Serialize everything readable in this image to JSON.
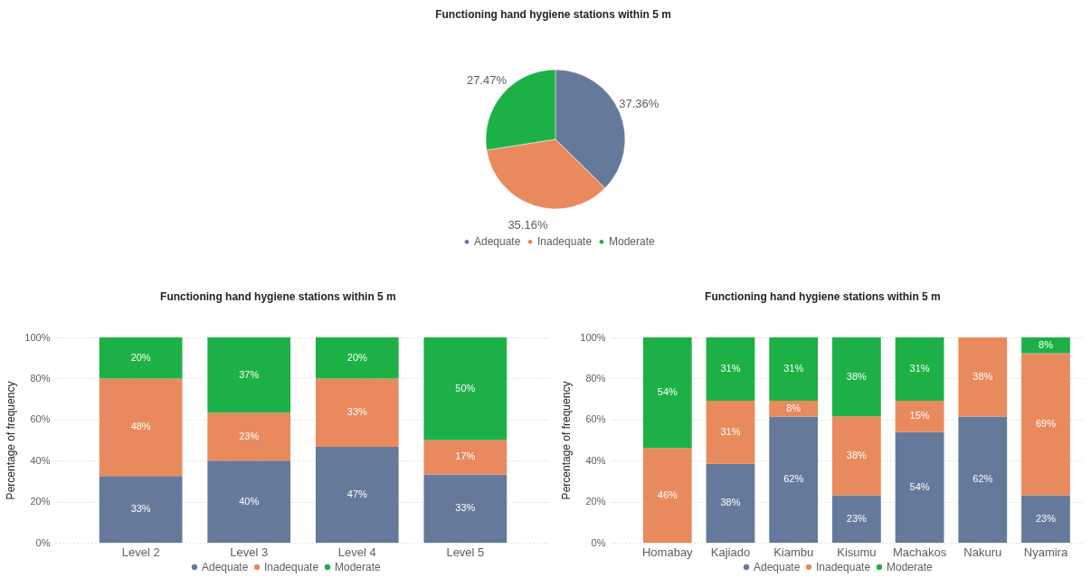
{
  "chart_data": [
    {
      "type": "pie",
      "title": "Functioning hand hygiene stations within 5 m",
      "categories": [
        "Adequate",
        "Inadequate",
        "Moderate"
      ],
      "values": [
        37.36,
        35.16,
        27.47
      ],
      "colors": [
        "#657a9b",
        "#e98a5e",
        "#1db046"
      ],
      "value_labels": [
        "37.36%",
        "35.16%",
        "27.47%"
      ],
      "legend": "bottom"
    },
    {
      "type": "bar",
      "stacked": true,
      "title": "Functioning hand hygiene stations within 5 m",
      "ylabel": "Percentage of frequency",
      "categories": [
        "Level 2",
        "Level 3",
        "Level 4",
        "Level 5"
      ],
      "series": [
        {
          "name": "Adequate",
          "color": "#657a9b",
          "values": [
            32.5,
            40,
            46.7,
            33.3
          ],
          "value_labels": [
            "33%",
            "40%",
            "47%",
            "33%"
          ]
        },
        {
          "name": "Inadequate",
          "color": "#e98a5e",
          "values": [
            47.5,
            23.3,
            33.3,
            16.7
          ],
          "value_labels": [
            "48%",
            "23%",
            "33%",
            "17%"
          ]
        },
        {
          "name": "Moderate",
          "color": "#1db046",
          "values": [
            20,
            36.7,
            20,
            50
          ],
          "value_labels": [
            "20%",
            "37%",
            "20%",
            "50%"
          ]
        }
      ],
      "ylim": [
        0,
        100
      ],
      "yticks": [
        {
          "value": 0,
          "label": "0%"
        },
        {
          "value": 20,
          "label": "20%"
        },
        {
          "value": 40,
          "label": "40%"
        },
        {
          "value": 60,
          "label": "60%"
        },
        {
          "value": 80,
          "label": "80%"
        },
        {
          "value": 100,
          "label": "100%"
        }
      ],
      "grid": "y",
      "legend": "bottom"
    },
    {
      "type": "bar",
      "stacked": true,
      "title": "Functioning hand hygiene stations within 5 m",
      "ylabel": "Percentage of frequency",
      "categories": [
        "Homabay",
        "Kajiado",
        "Kiambu",
        "Kisumu",
        "Machakos",
        "Nakuru",
        "Nyamira"
      ],
      "series": [
        {
          "name": "Adequate",
          "color": "#657a9b",
          "values": [
            0,
            38.4,
            61.5,
            23.1,
            53.8,
            61.5,
            23.1
          ],
          "value_labels": [
            null,
            "38%",
            "62%",
            "23%",
            "54%",
            "62%",
            "23%"
          ]
        },
        {
          "name": "Inadequate",
          "color": "#e98a5e",
          "values": [
            46.2,
            30.8,
            7.7,
            38.5,
            15.4,
            38.5,
            69.2
          ],
          "value_labels": [
            "46%",
            "31%",
            "8%",
            "38%",
            "15%",
            "38%",
            "69%"
          ]
        },
        {
          "name": "Moderate",
          "color": "#1db046",
          "values": [
            53.8,
            30.8,
            30.8,
            38.4,
            30.8,
            0,
            7.7
          ],
          "value_labels": [
            "54%",
            "31%",
            "31%",
            "38%",
            "31%",
            null,
            "8%"
          ]
        }
      ],
      "ylim": [
        0,
        100
      ],
      "yticks": [
        {
          "value": 0,
          "label": "0%"
        },
        {
          "value": 20,
          "label": "20%"
        },
        {
          "value": 40,
          "label": "40%"
        },
        {
          "value": 60,
          "label": "60%"
        },
        {
          "value": 80,
          "label": "80%"
        },
        {
          "value": 100,
          "label": "100%"
        }
      ],
      "grid": "y",
      "legend": "bottom"
    }
  ]
}
